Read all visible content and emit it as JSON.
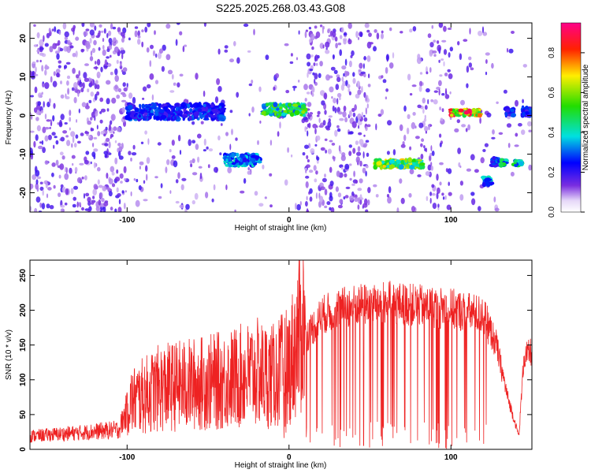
{
  "title": "S225.2025.268.03.43.G08",
  "chart_data": [
    {
      "type": "heatmap",
      "xlabel": "Height of straight line (km)",
      "ylabel": "Frequency (Hz)",
      "xlim": [
        -160,
        150
      ],
      "ylim": [
        -25,
        24
      ],
      "xticks": [
        -100,
        0,
        100
      ],
      "xtick_labels": [
        "-100",
        "0",
        "100"
      ],
      "yticks": [
        -20,
        -10,
        0,
        10,
        20
      ],
      "ytick_labels": [
        "-20",
        "-10",
        "0",
        "10",
        "20"
      ],
      "colorbar": {
        "label": "Normalized spectral amplitude",
        "range": [
          0.0,
          0.95
        ],
        "ticks": [
          0.0,
          0.2,
          0.4,
          0.6,
          0.8
        ],
        "tick_labels": [
          "0.0",
          "0.2",
          "0.4",
          "0.6",
          "0.8"
        ],
        "colors": [
          "#ff0066",
          "#ff0000",
          "#ffcc00",
          "#33dd00",
          "#00dddd",
          "#0000ff",
          "#6600cc",
          "#dcc8f5"
        ]
      },
      "bands": [
        {
          "x": [
            -100,
            -40
          ],
          "f": [
            -1,
            3
          ],
          "amplitude": 0.3
        },
        {
          "x": [
            -40,
            -18
          ],
          "f": [
            -13,
            -10
          ],
          "amplitude": 0.4
        },
        {
          "x": [
            -16,
            10
          ],
          "f": [
            0,
            3
          ],
          "amplitude": 0.6
        },
        {
          "x": [
            53,
            83
          ],
          "f": [
            -13.5,
            -11.5
          ],
          "amplitude": 0.7
        },
        {
          "x": [
            100,
            118
          ],
          "f": [
            0,
            1.5
          ],
          "amplitude": 0.9
        },
        {
          "x": [
            120,
            125
          ],
          "f": [
            -18,
            -16
          ],
          "amplitude": 0.4
        },
        {
          "x": [
            125,
            129
          ],
          "f": [
            -13,
            -11
          ],
          "amplitude": 0.3
        },
        {
          "x": [
            129,
            134
          ],
          "f": [
            -13,
            -11.5
          ],
          "amplitude": 0.5
        },
        {
          "x": [
            134,
            139
          ],
          "f": [
            0,
            2
          ],
          "amplitude": 0.3
        },
        {
          "x": [
            139,
            144
          ],
          "f": [
            -13,
            -11.5
          ],
          "amplitude": 0.5
        },
        {
          "x": [
            144,
            150
          ],
          "f": [
            0,
            2
          ],
          "amplitude": 0.3
        }
      ],
      "noise_regions": [
        {
          "x": [
            -160,
            -100
          ],
          "density": 0.9
        },
        {
          "x": [
            -100,
            -40
          ],
          "density": 0.25
        },
        {
          "x": [
            -40,
            -18
          ],
          "density": 0.15
        },
        {
          "x": [
            -18,
            10
          ],
          "density": 0.15
        },
        {
          "x": [
            10,
            50
          ],
          "density": 0.9
        },
        {
          "x": [
            50,
            80
          ],
          "density": 0.2
        },
        {
          "x": [
            80,
            100
          ],
          "density": 0.6
        },
        {
          "x": [
            100,
            150
          ],
          "density": 0.15
        }
      ]
    },
    {
      "type": "line",
      "xlabel": "Height of straight line (km)",
      "ylabel": "SNR (10 * v/v)",
      "xlim": [
        -160,
        150
      ],
      "ylim": [
        0,
        272
      ],
      "xticks": [
        -100,
        0,
        100
      ],
      "xtick_labels": [
        "-100",
        "0",
        "100"
      ],
      "yticks": [
        0,
        50,
        100,
        150,
        200,
        250
      ],
      "ytick_labels": [
        "0",
        "50",
        "100",
        "150",
        "200",
        "250"
      ],
      "color": "#ee2222",
      "series": [
        {
          "x": [
            -160,
            -130,
            -105,
            -100,
            -80,
            -60,
            -40,
            -20,
            -10,
            0,
            10,
            20,
            30,
            40,
            60,
            80,
            100,
            110,
            120,
            128,
            135,
            142,
            145,
            150
          ],
          "y": [
            20,
            25,
            30,
            60,
            80,
            85,
            90,
            100,
            95,
            110,
            170,
            205,
            215,
            220,
            225,
            220,
            215,
            210,
            205,
            160,
            80,
            20,
            140,
            150
          ]
        }
      ]
    }
  ]
}
